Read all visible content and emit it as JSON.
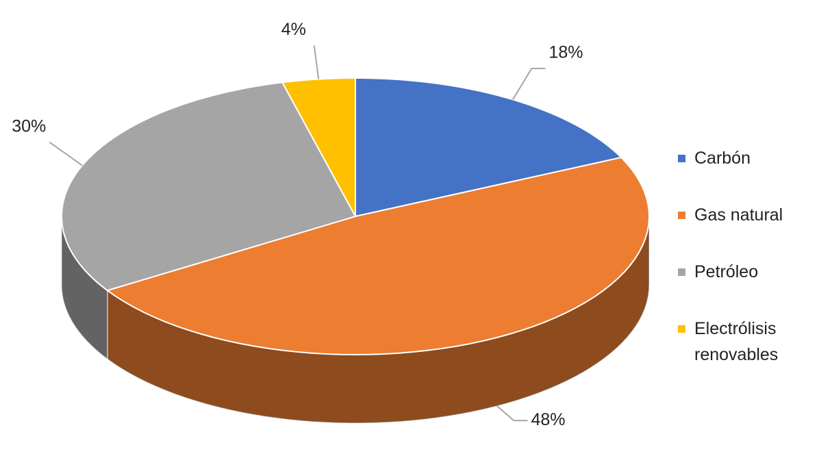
{
  "chart_data": {
    "type": "pie",
    "categories": [
      "Carbón",
      "Gas natural",
      "Petróleo",
      "Electrólisis renovables"
    ],
    "values": [
      18,
      48,
      30,
      4
    ],
    "value_labels": [
      "18%",
      "48%",
      "30%",
      "4%"
    ],
    "colors": [
      "#4472c4",
      "#ed7d31",
      "#a5a5a5",
      "#ffc000"
    ],
    "legend": "right"
  }
}
